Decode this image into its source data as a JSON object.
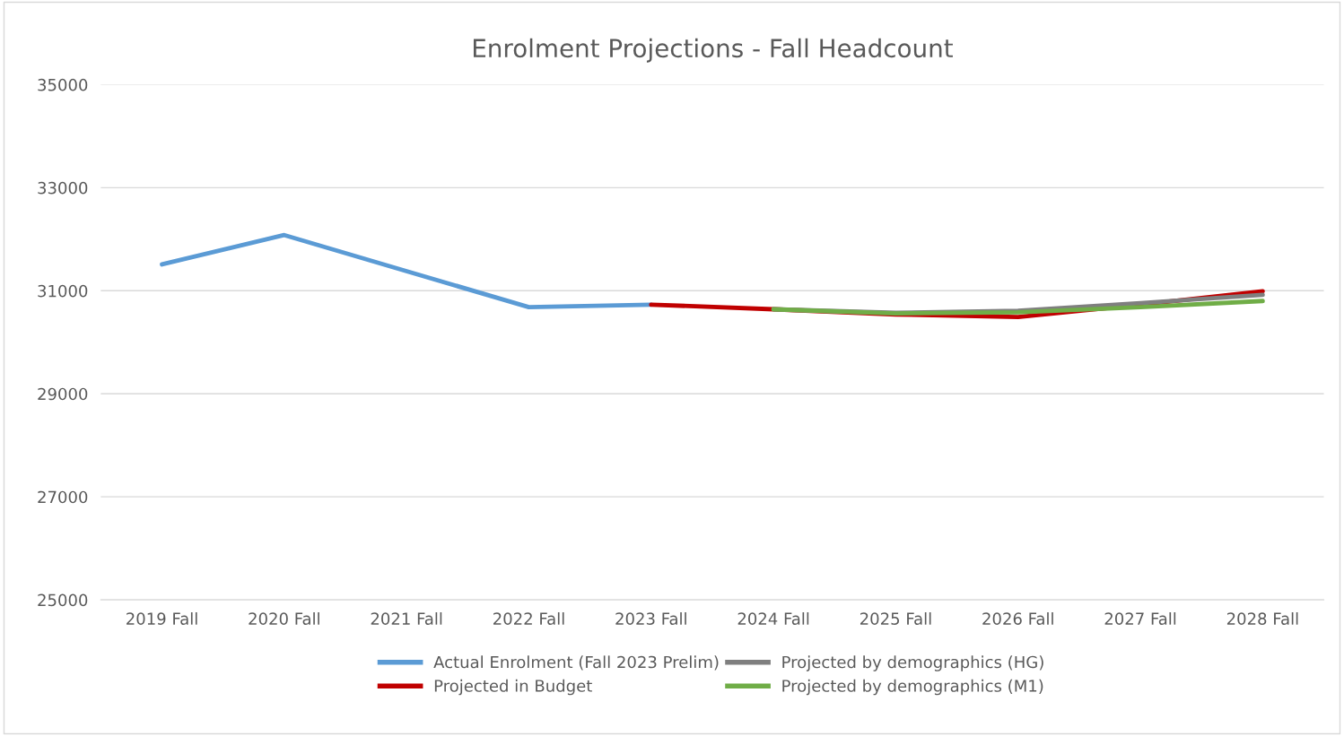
{
  "chart_data": {
    "type": "line",
    "title": "Enrolment Projections - Fall Headcount",
    "categories": [
      "2019 Fall",
      "2020 Fall",
      "2021 Fall",
      "2022 Fall",
      "2023 Fall",
      "2024 Fall",
      "2025 Fall",
      "2026 Fall",
      "2027 Fall",
      "2028 Fall"
    ],
    "series": [
      {
        "name": "Actual Enrolment (Fall 2023 Prelim)",
        "color": "#5b9bd5",
        "values": [
          31510,
          32080,
          31380,
          30680,
          30730,
          null,
          null,
          null,
          null,
          null
        ]
      },
      {
        "name": "Projected in Budget",
        "color": "#c00000",
        "values": [
          null,
          null,
          null,
          null,
          30730,
          30640,
          30540,
          30490,
          30730,
          30990
        ]
      },
      {
        "name": "Projected by demographics (HG)",
        "color": "#7f7f7f",
        "values": [
          null,
          null,
          null,
          null,
          null,
          30640,
          30570,
          30610,
          30760,
          30920
        ]
      },
      {
        "name": "Projected by demographics (M1)",
        "color": "#70ad47",
        "values": [
          null,
          null,
          null,
          null,
          null,
          30640,
          30560,
          30580,
          30680,
          30800
        ]
      }
    ],
    "ylim": [
      25000,
      35000
    ],
    "yticks": [
      25000,
      27000,
      29000,
      31000,
      33000,
      35000
    ],
    "grid": "y",
    "legend": "bottom",
    "marker": "none",
    "line_style": "solid"
  }
}
